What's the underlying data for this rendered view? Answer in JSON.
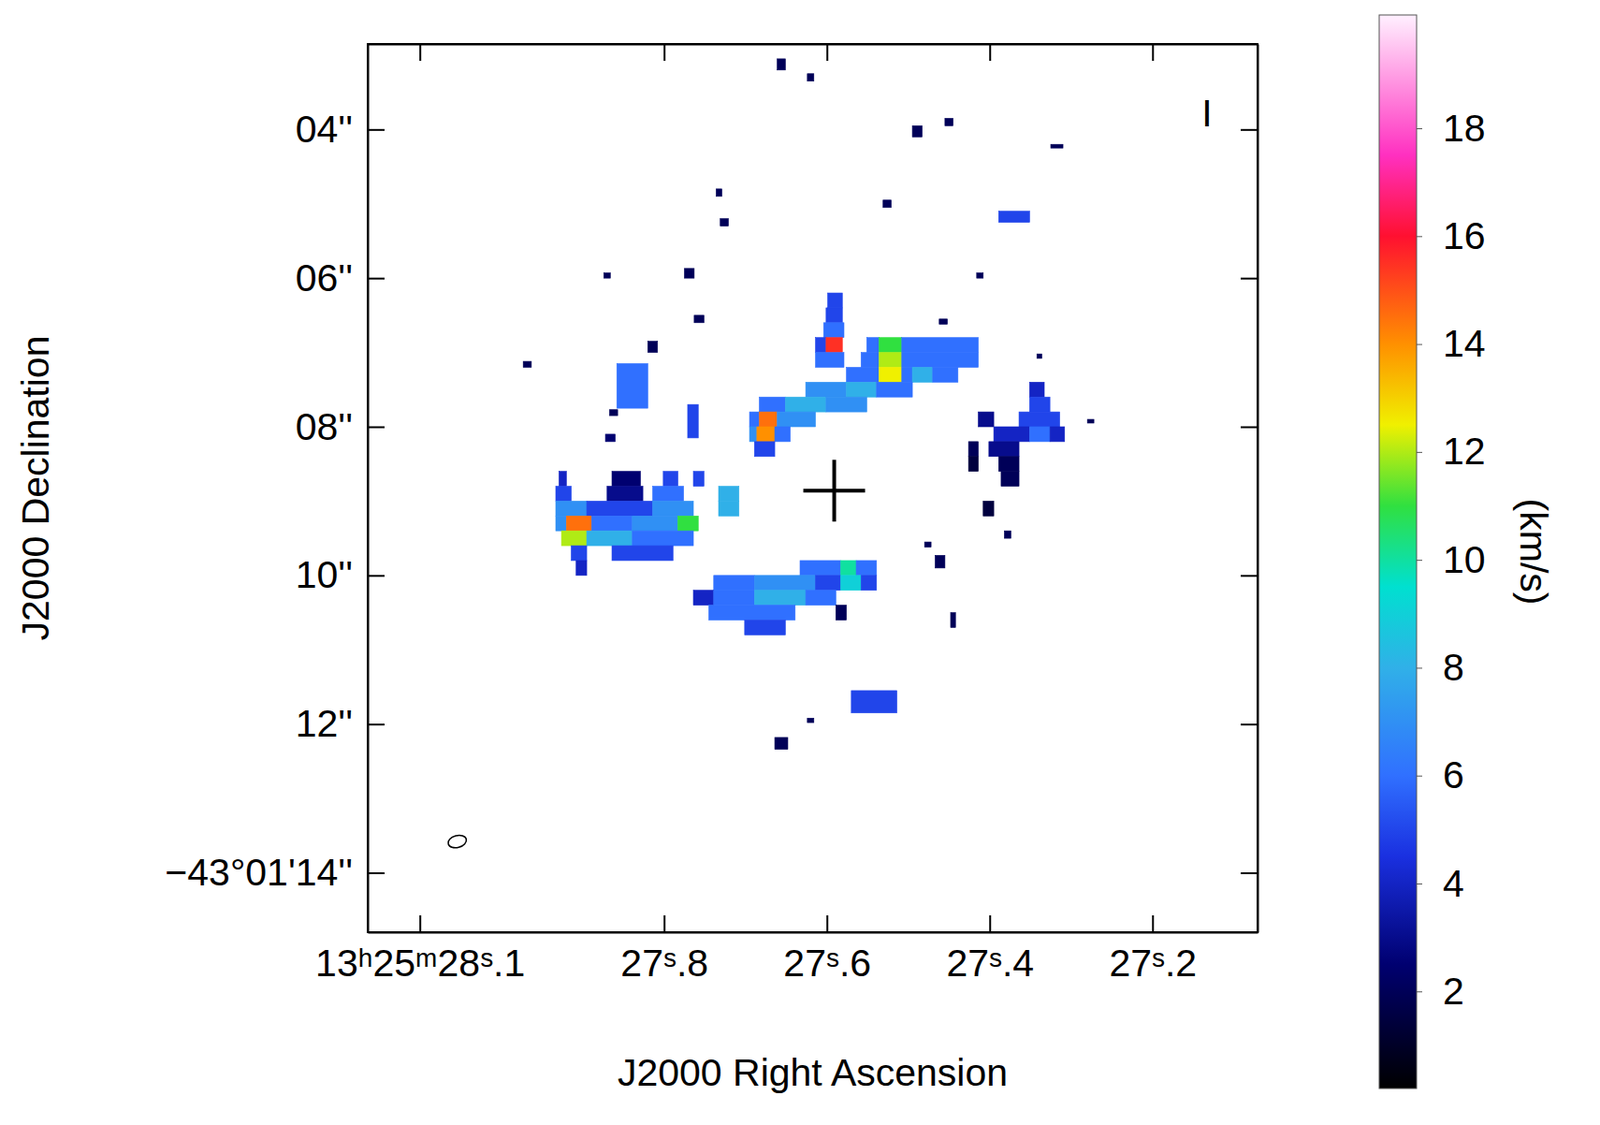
{
  "chart_data": {
    "type": "heatmap",
    "xlabel": "J2000 Right Ascension",
    "ylabel": "J2000 Declination",
    "xlim": [
      28.164,
      27.071
    ],
    "ylim": [
      14.8,
      2.85
    ],
    "xticks": [
      {
        "value": 28.1,
        "label": "13ʰ25ᵐ28ˢ.1"
      },
      {
        "value": 27.8,
        "label": "27ˢ.8"
      },
      {
        "value": 27.6,
        "label": "27ˢ.6"
      },
      {
        "value": 27.4,
        "label": "27ˢ.4"
      },
      {
        "value": 27.2,
        "label": "27ˢ.2"
      }
    ],
    "yticks": [
      {
        "value": 4,
        "label": "04''"
      },
      {
        "value": 6,
        "label": "06''"
      },
      {
        "value": 8,
        "label": "08''"
      },
      {
        "value": 10,
        "label": "10''"
      },
      {
        "value": 12,
        "label": "12''"
      },
      {
        "value": 14,
        "label": "−43°01'14''"
      }
    ],
    "cells": [
      [
        27.599,
        27.581,
        6.2,
        6.4,
        5
      ],
      [
        27.601,
        27.581,
        6.4,
        6.6,
        5
      ],
      [
        27.604,
        27.579,
        6.6,
        6.8,
        6
      ],
      [
        27.614,
        27.601,
        6.8,
        7.0,
        5
      ],
      [
        27.601,
        27.581,
        6.8,
        7.0,
        15.5
      ],
      [
        27.551,
        27.536,
        6.8,
        7.0,
        6
      ],
      [
        27.536,
        27.508,
        6.8,
        7.0,
        11
      ],
      [
        27.508,
        27.414,
        6.8,
        7.0,
        6
      ],
      [
        27.614,
        27.579,
        7.0,
        7.2,
        6
      ],
      [
        27.558,
        27.536,
        7.0,
        7.2,
        6
      ],
      [
        27.536,
        27.508,
        7.0,
        7.2,
        12
      ],
      [
        27.508,
        27.414,
        7.0,
        7.2,
        6
      ],
      [
        27.576,
        27.536,
        7.2,
        7.4,
        6
      ],
      [
        27.536,
        27.508,
        7.2,
        7.4,
        12.5
      ],
      [
        27.508,
        27.495,
        7.2,
        7.4,
        6
      ],
      [
        27.495,
        27.47,
        7.2,
        7.4,
        8
      ],
      [
        27.47,
        27.439,
        7.2,
        7.4,
        6
      ],
      [
        27.626,
        27.576,
        7.4,
        7.6,
        7
      ],
      [
        27.576,
        27.539,
        7.4,
        7.6,
        8
      ],
      [
        27.539,
        27.495,
        7.4,
        7.6,
        6
      ],
      [
        27.683,
        27.651,
        7.6,
        7.8,
        6
      ],
      [
        27.651,
        27.601,
        7.6,
        7.8,
        8
      ],
      [
        27.601,
        27.551,
        7.6,
        7.8,
        7
      ],
      [
        27.695,
        27.683,
        7.8,
        8.0,
        6
      ],
      [
        27.683,
        27.661,
        7.8,
        8.0,
        14.5
      ],
      [
        27.661,
        27.614,
        7.8,
        8.0,
        7
      ],
      [
        27.695,
        27.686,
        8.0,
        8.2,
        7
      ],
      [
        27.686,
        27.664,
        8.0,
        8.2,
        14
      ],
      [
        27.664,
        27.645,
        8.0,
        8.2,
        6
      ],
      [
        27.689,
        27.664,
        8.2,
        8.4,
        5
      ],
      [
        27.929,
        27.92,
        8.6,
        8.8,
        4
      ],
      [
        27.864,
        27.829,
        8.6,
        8.8,
        2.5
      ],
      [
        27.801,
        27.783,
        8.6,
        8.8,
        5
      ],
      [
        27.764,
        27.751,
        8.6,
        8.8,
        5
      ],
      [
        27.933,
        27.914,
        8.8,
        9.0,
        5
      ],
      [
        27.87,
        27.826,
        8.8,
        9.0,
        3
      ],
      [
        27.814,
        27.776,
        8.8,
        9.0,
        6
      ],
      [
        27.733,
        27.708,
        8.8,
        9.0,
        8
      ],
      [
        27.933,
        27.895,
        9.0,
        9.2,
        7
      ],
      [
        27.895,
        27.814,
        9.0,
        9.2,
        5
      ],
      [
        27.814,
        27.764,
        9.0,
        9.2,
        7
      ],
      [
        27.733,
        27.708,
        9.0,
        9.2,
        8
      ],
      [
        27.933,
        27.92,
        9.2,
        9.4,
        7
      ],
      [
        27.92,
        27.889,
        9.2,
        9.4,
        14.5
      ],
      [
        27.889,
        27.839,
        9.2,
        9.4,
        6
      ],
      [
        27.839,
        27.783,
        9.2,
        9.4,
        7
      ],
      [
        27.783,
        27.758,
        9.2,
        9.4,
        11
      ],
      [
        27.926,
        27.895,
        9.4,
        9.6,
        12
      ],
      [
        27.895,
        27.839,
        9.4,
        9.6,
        8
      ],
      [
        27.839,
        27.764,
        9.4,
        9.6,
        6
      ],
      [
        27.914,
        27.895,
        9.6,
        9.8,
        5
      ],
      [
        27.864,
        27.789,
        9.6,
        9.8,
        5
      ],
      [
        27.908,
        27.895,
        9.8,
        10.0,
        4
      ],
      [
        27.633,
        27.583,
        9.8,
        10.0,
        6
      ],
      [
        27.583,
        27.564,
        9.8,
        10.0,
        10
      ],
      [
        27.564,
        27.539,
        9.8,
        10.0,
        6
      ],
      [
        27.739,
        27.689,
        10.0,
        10.2,
        6
      ],
      [
        27.689,
        27.614,
        10.0,
        10.2,
        7
      ],
      [
        27.614,
        27.583,
        10.0,
        10.2,
        5
      ],
      [
        27.583,
        27.558,
        10.0,
        10.2,
        9
      ],
      [
        27.558,
        27.539,
        10.0,
        10.2,
        5
      ],
      [
        27.764,
        27.739,
        10.2,
        10.4,
        4
      ],
      [
        27.739,
        27.689,
        10.2,
        10.4,
        6
      ],
      [
        27.689,
        27.626,
        10.2,
        10.4,
        8
      ],
      [
        27.626,
        27.589,
        10.2,
        10.4,
        6
      ],
      [
        27.745,
        27.639,
        10.4,
        10.6,
        6
      ],
      [
        27.589,
        27.576,
        10.4,
        10.6,
        2
      ],
      [
        27.701,
        27.651,
        10.6,
        10.8,
        5
      ],
      [
        27.351,
        27.333,
        7.4,
        7.6,
        4
      ],
      [
        27.351,
        27.326,
        7.6,
        7.8,
        5
      ],
      [
        27.414,
        27.395,
        7.8,
        8.0,
        3
      ],
      [
        27.364,
        27.314,
        7.8,
        8.0,
        5
      ],
      [
        27.395,
        27.351,
        8.0,
        8.2,
        4
      ],
      [
        27.351,
        27.326,
        8.0,
        8.2,
        6
      ],
      [
        27.326,
        27.308,
        8.0,
        8.2,
        4
      ],
      [
        27.426,
        27.414,
        8.2,
        8.4,
        2
      ],
      [
        27.401,
        27.364,
        8.2,
        8.4,
        3
      ],
      [
        27.426,
        27.414,
        8.4,
        8.6,
        1.5
      ],
      [
        27.389,
        27.364,
        8.4,
        8.6,
        2
      ],
      [
        27.386,
        27.364,
        8.6,
        8.8,
        2
      ],
      [
        27.408,
        27.395,
        9.0,
        9.2,
        1.5
      ],
      [
        27.661,
        27.651,
        3.05,
        3.2,
        2
      ],
      [
        27.624,
        27.616,
        3.25,
        3.35,
        2
      ],
      [
        27.495,
        27.483,
        3.95,
        4.1,
        2
      ],
      [
        27.455,
        27.445,
        3.85,
        3.95,
        2
      ],
      [
        27.325,
        27.31,
        4.2,
        4.25,
        2
      ],
      [
        27.389,
        27.351,
        5.1,
        5.25,
        5
      ],
      [
        27.531,
        27.521,
        4.95,
        5.05,
        2
      ],
      [
        27.736,
        27.729,
        4.8,
        4.9,
        2
      ],
      [
        27.731,
        27.721,
        5.2,
        5.3,
        2
      ],
      [
        27.775,
        27.763,
        5.87,
        6.0,
        2
      ],
      [
        27.763,
        27.751,
        6.5,
        6.6,
        2
      ],
      [
        27.82,
        27.808,
        6.85,
        7.0,
        2
      ],
      [
        27.858,
        27.82,
        7.15,
        7.75,
        6
      ],
      [
        27.874,
        27.866,
        5.93,
        6.0,
        2
      ],
      [
        27.973,
        27.963,
        7.12,
        7.2,
        2
      ],
      [
        27.867,
        27.857,
        7.77,
        7.85,
        2
      ],
      [
        27.872,
        27.86,
        8.1,
        8.2,
        2.5
      ],
      [
        27.771,
        27.758,
        7.7,
        8.15,
        5
      ],
      [
        27.462,
        27.452,
        6.55,
        6.62,
        2
      ],
      [
        27.416,
        27.408,
        5.93,
        6.0,
        2
      ],
      [
        27.342,
        27.336,
        7.02,
        7.08,
        2
      ],
      [
        27.28,
        27.272,
        7.9,
        7.95,
        2
      ],
      [
        27.57,
        27.514,
        11.55,
        11.85,
        5
      ],
      [
        27.664,
        27.648,
        12.18,
        12.34,
        2
      ],
      [
        27.624,
        27.616,
        11.92,
        11.98,
        2
      ],
      [
        27.467,
        27.455,
        9.73,
        9.9,
        2
      ],
      [
        27.48,
        27.472,
        9.55,
        9.62,
        2
      ],
      [
        27.448,
        27.442,
        10.5,
        10.7,
        2
      ],
      [
        27.382,
        27.374,
        9.4,
        9.5,
        2
      ]
    ],
    "colorbar": {
      "label": "(km/s)",
      "range": [
        0.2,
        20.1
      ],
      "ticks": [
        2,
        4,
        6,
        8,
        10,
        12,
        14,
        16,
        18
      ],
      "stop_values": [
        0.2,
        2.5,
        4.5,
        6,
        8,
        9.5,
        11,
        12.5,
        14,
        16,
        17.5,
        20.1
      ],
      "stop_colors": [
        "#000000",
        "#000070",
        "#1a30e0",
        "#3070ff",
        "#30b0e8",
        "#00e0d0",
        "#30e040",
        "#f0f000",
        "#ff9000",
        "#ff1030",
        "#ff30c0",
        "#fff0ff"
      ]
    },
    "center": {
      "x": 27.591,
      "y": 8.86,
      "marker": "cross"
    },
    "beam": {
      "x": 28.054,
      "y": 13.58,
      "major": 0.25,
      "minor": 0.16
    },
    "annotations": [
      "I"
    ]
  }
}
